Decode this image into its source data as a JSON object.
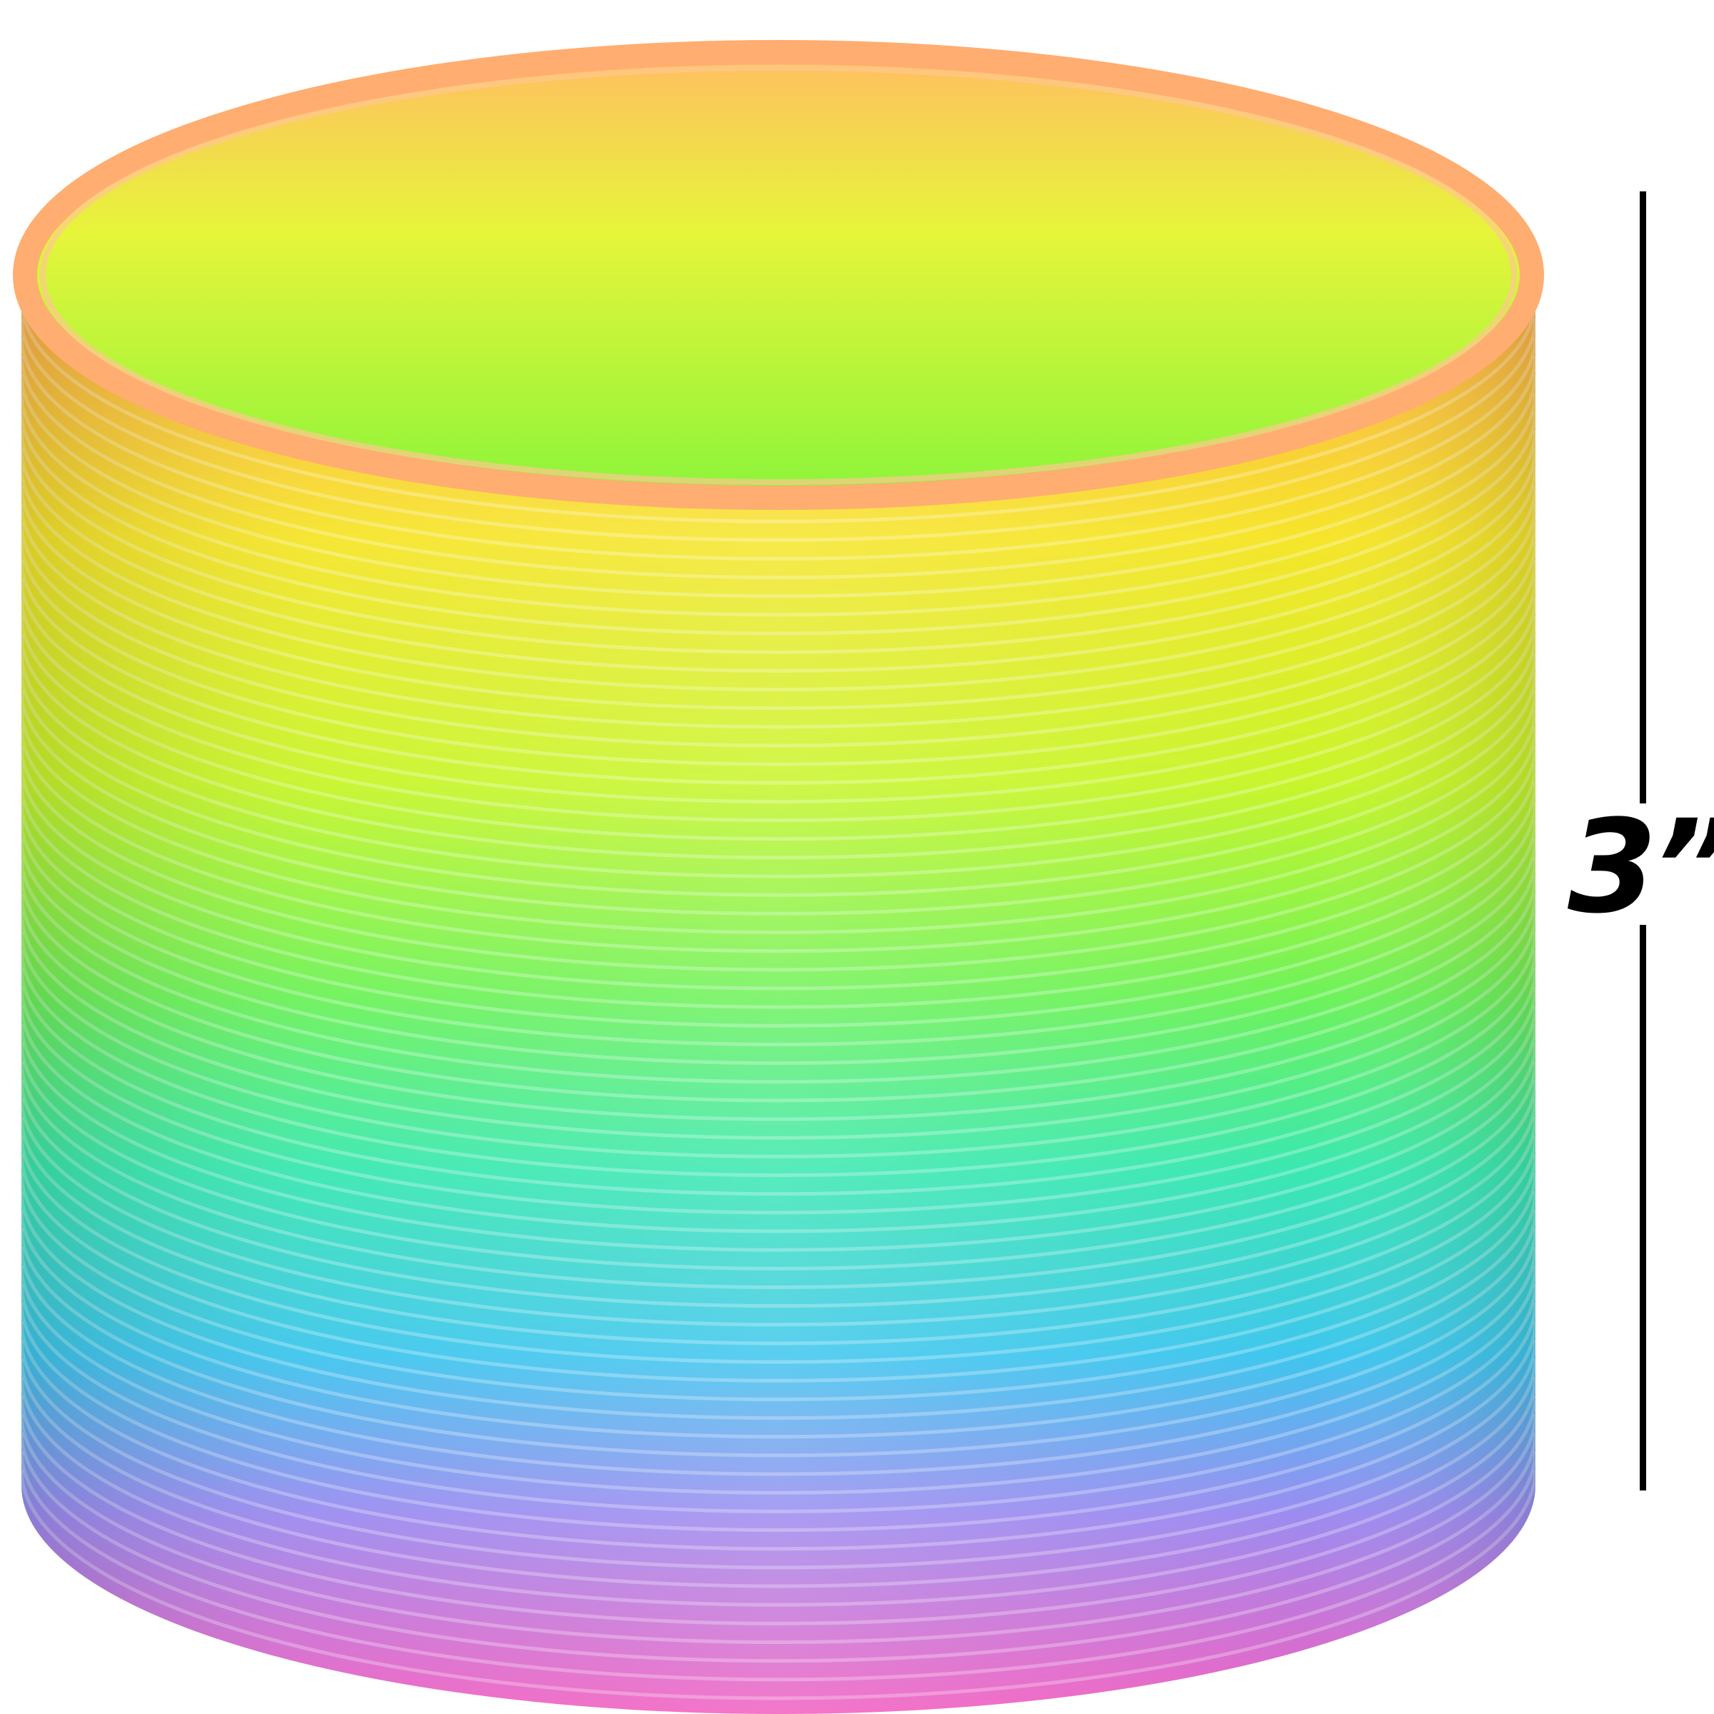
{
  "product": {
    "icon": "rainbow-spring-toy",
    "colors": [
      "#ffa94d",
      "#f2f21a",
      "#b8f52a",
      "#5ef26a",
      "#35e6c8",
      "#3ec3f0",
      "#9b8cf0",
      "#f25fc0"
    ]
  },
  "dimension": {
    "label": "3”",
    "icon": "height-dimension-line"
  }
}
